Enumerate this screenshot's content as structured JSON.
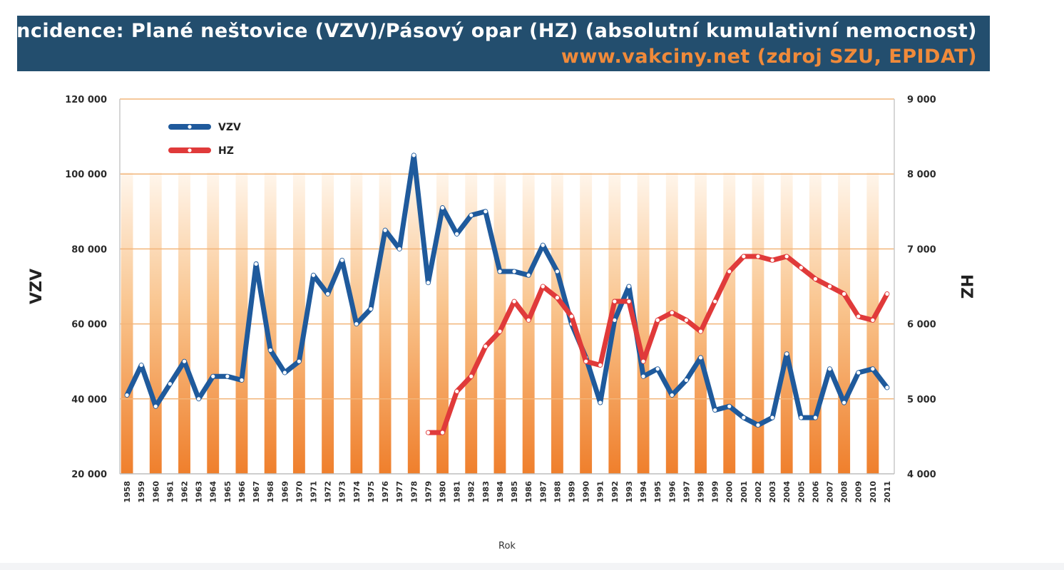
{
  "header": {
    "title": "Incidence: Plané neštovice (VZV)/Pásový opar (HZ) (absolutní kumulativní  nemocnost)",
    "source": "www.vakciny.net (zdroj SZU, EPIDAT)"
  },
  "colors": {
    "header_bg": "#234e6e",
    "source_text": "#f08a3a",
    "vzv_line": "#1f5a9c",
    "hz_line": "#e03a3a",
    "bar_gradient_top": "#fff4e6",
    "bar_gradient_bottom": "#f08030",
    "gridline": "#f2b57a"
  },
  "chart_data": {
    "type": "line",
    "x": [
      "1958",
      "1959",
      "1960",
      "1961",
      "1962",
      "1963",
      "1964",
      "1965",
      "1966",
      "1967",
      "1968",
      "1969",
      "1970",
      "1971",
      "1972",
      "1973",
      "1974",
      "1975",
      "1976",
      "1977",
      "1978",
      "1979",
      "1980",
      "1981",
      "1982",
      "1983",
      "1984",
      "1985",
      "1986",
      "1987",
      "1988",
      "1989",
      "1990",
      "1991",
      "1992",
      "1993",
      "1994",
      "1995",
      "1996",
      "1997",
      "1998",
      "1999",
      "2000",
      "2001",
      "2002",
      "2003",
      "2004",
      "2005",
      "2006",
      "2007",
      "2008",
      "2009",
      "2010",
      "2011"
    ],
    "xlabel": "Rok",
    "ylabel_left": "VZV",
    "ylabel_right": "HZ",
    "ylim_left": [
      20000,
      120000
    ],
    "ylim_right": [
      4000,
      9000
    ],
    "yticks_left": [
      "20 000",
      "40 000",
      "60 000",
      "80 000",
      "100 000",
      "120 000"
    ],
    "yticks_right": [
      "4 000",
      "5 000",
      "6 000",
      "7 000",
      "8 000",
      "9 000"
    ],
    "series": [
      {
        "name": "VZV",
        "axis": "left",
        "values": [
          41000,
          49000,
          38000,
          44000,
          50000,
          40000,
          46000,
          46000,
          45000,
          76000,
          53000,
          47000,
          50000,
          73000,
          68000,
          77000,
          60000,
          64000,
          85000,
          80000,
          105000,
          71000,
          91000,
          84000,
          89000,
          90000,
          74000,
          74000,
          73000,
          81000,
          74000,
          60000,
          51000,
          39000,
          61000,
          70000,
          46000,
          48000,
          41000,
          45000,
          51000,
          37000,
          38000,
          35000,
          33000,
          35000,
          52000,
          35000,
          35000,
          48000,
          39000,
          47000,
          48000,
          43000
        ]
      },
      {
        "name": "HZ",
        "axis": "right",
        "values": [
          null,
          null,
          null,
          null,
          null,
          null,
          null,
          null,
          null,
          null,
          null,
          null,
          null,
          null,
          null,
          null,
          null,
          null,
          null,
          null,
          null,
          4550,
          4550,
          5100,
          5300,
          5700,
          5900,
          6300,
          6050,
          6500,
          6350,
          6100,
          5500,
          5450,
          6300,
          6300,
          5500,
          6050,
          6150,
          6050,
          5900,
          6300,
          6700,
          6900,
          6900,
          6850,
          6900,
          6750,
          6600,
          6500,
          6400,
          6100,
          6050,
          6400
        ]
      }
    ],
    "legend_position": "top-left",
    "grid": true,
    "background_bars": true
  }
}
